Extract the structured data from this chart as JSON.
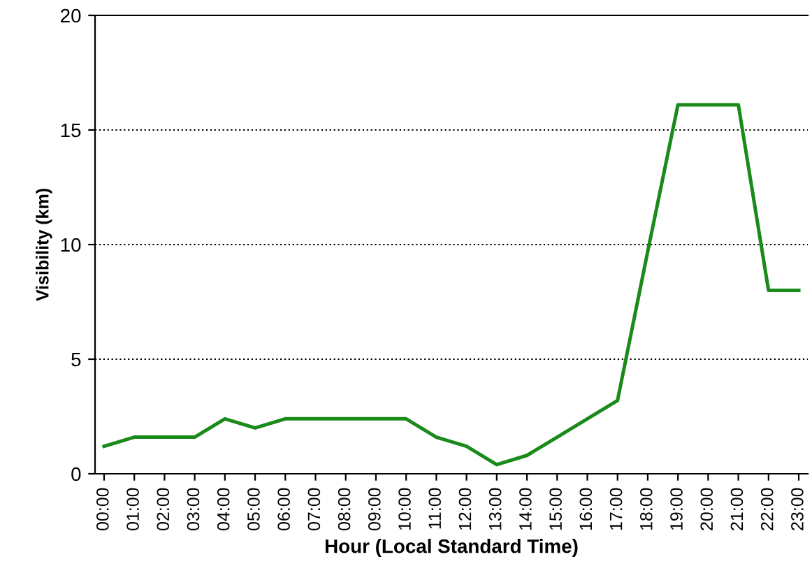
{
  "chart_data": {
    "type": "line",
    "xlabel": "Hour (Local Standard Time)",
    "ylabel": "Visibility (km)",
    "categories": [
      "00:00",
      "01:00",
      "02:00",
      "03:00",
      "04:00",
      "05:00",
      "06:00",
      "07:00",
      "08:00",
      "09:00",
      "10:00",
      "11:00",
      "12:00",
      "13:00",
      "14:00",
      "15:00",
      "16:00",
      "17:00",
      "18:00",
      "19:00",
      "20:00",
      "21:00",
      "22:00",
      "23:00"
    ],
    "series": [
      {
        "color": "#1a8a1a",
        "values": [
          1.2,
          1.6,
          1.6,
          1.6,
          2.4,
          2.0,
          2.4,
          2.4,
          2.4,
          2.4,
          2.4,
          1.6,
          1.2,
          0.4,
          0.8,
          1.6,
          2.4,
          3.2,
          9.7,
          16.1,
          16.1,
          16.1,
          8.0,
          8.0
        ]
      }
    ],
    "ylim": [
      0,
      20
    ],
    "yticks": [
      0,
      5,
      10,
      15,
      20
    ],
    "grid": "y",
    "marker": "none",
    "line_style": "solid"
  }
}
